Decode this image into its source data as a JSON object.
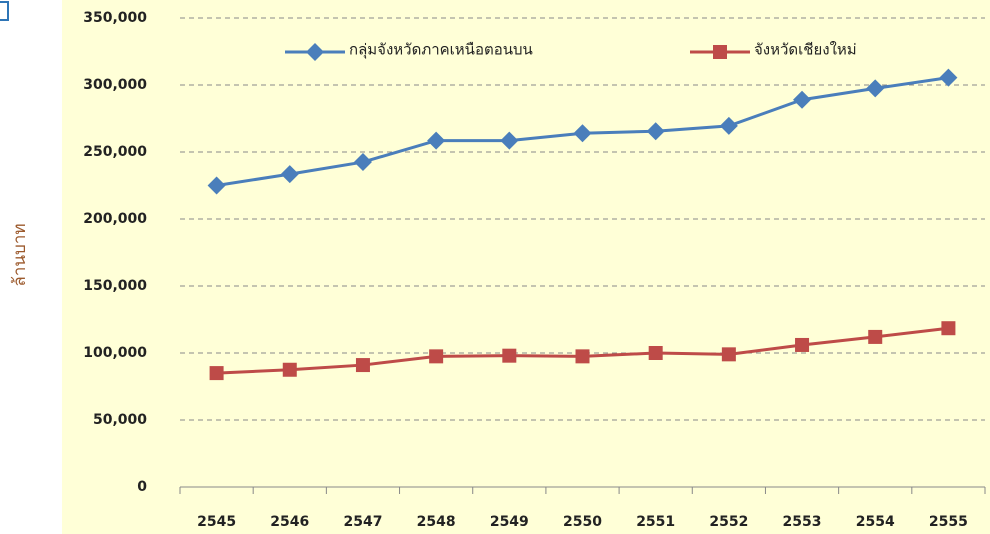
{
  "chart_data": {
    "type": "line",
    "y_label": "ล้านบาท",
    "categories": [
      "2545",
      "2546",
      "2547",
      "2548",
      "2549",
      "2550",
      "2551",
      "2552",
      "2553",
      "2554",
      "2555"
    ],
    "series": [
      {
        "name": "กลุ่มจังหวัดภาคเหนือตอนบน",
        "color": "#4a7ebb",
        "marker": "diamond",
        "values": [
          225000,
          233500,
          242500,
          258500,
          258500,
          264000,
          265500,
          269500,
          289000,
          297500,
          305500
        ]
      },
      {
        "name": "จังหวัดเชียงใหม่",
        "color": "#be4b48",
        "marker": "square",
        "values": [
          85000,
          87500,
          91000,
          97500,
          98000,
          97500,
          100000,
          99000,
          106000,
          112000,
          118500
        ]
      }
    ],
    "ylim": [
      0,
      350000
    ],
    "yticks": [
      0,
      {
        "value": 50000,
        "label": "50,000"
      },
      {
        "value": 100000,
        "label": "100,000"
      },
      {
        "value": 150000,
        "label": "150,000"
      },
      {
        "value": 200000,
        "label": "200,000"
      },
      {
        "value": 250000,
        "label": "250,000"
      },
      {
        "value": 300000,
        "label": "300,000"
      },
      {
        "value": 350000,
        "label": "350,000"
      }
    ],
    "grid": true
  }
}
